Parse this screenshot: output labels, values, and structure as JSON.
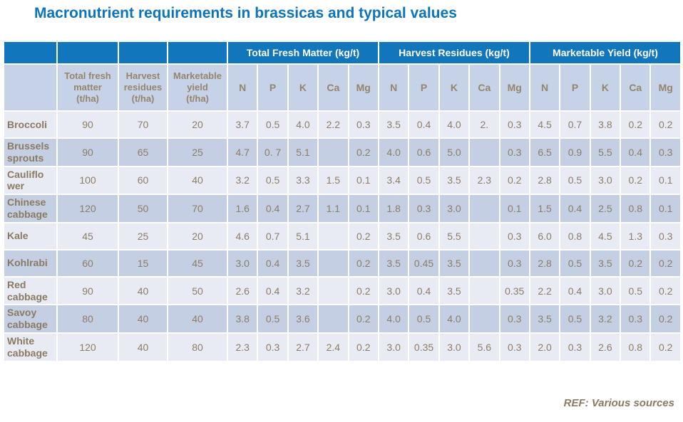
{
  "title": "Macronutrient requirements in brassicas and typical values",
  "footer": {
    "reference": "REF: Various sources"
  },
  "colors": {
    "title_blue": "#0d74bc",
    "header_blue": "#1276bc",
    "subheader_bg": "#c6d2e7",
    "row_light": "#e9ebf4",
    "row_dark": "#c4cfe3",
    "text_brown": "#8a7a62"
  },
  "table": {
    "group_headers": [
      "Total Fresh Matter (kg/t)",
      "Harvest Residues (kg/t)",
      "Marketable Yield (kg/t)"
    ],
    "stat_headers": [
      "Total fresh\nmatter\n(t/ha)",
      "Harvest\nresidues\n(t/ha)",
      "Marketable\nyield\n(t/ha)"
    ],
    "nutrient_headers": [
      "N",
      "P",
      "K",
      "Ca",
      "Mg"
    ],
    "rows": [
      {
        "crop": "Broccoli",
        "tha": [
          "90",
          "70",
          "20"
        ],
        "total_fresh_matter": [
          "3.7",
          "0.5",
          "4.0",
          "2.2",
          "0.3"
        ],
        "harvest_residues": [
          "3.5",
          "0.4",
          "4.0",
          "2.",
          "0.3"
        ],
        "marketable_yield": [
          "4.5",
          "0.7",
          "3.8",
          "0.2",
          "0.2"
        ]
      },
      {
        "crop": "Brussels\nsprouts",
        "tha": [
          "90",
          "65",
          "25"
        ],
        "total_fresh_matter": [
          "4.7",
          "0. 7",
          "5.1",
          "",
          "0.2"
        ],
        "harvest_residues": [
          "4.0",
          "0.6",
          "5.0",
          "",
          "0.3"
        ],
        "marketable_yield": [
          "6.5",
          "0.9",
          "5.5",
          "0.4",
          "0.3"
        ]
      },
      {
        "crop": "Cauliflo\nwer",
        "tha": [
          "100",
          "60",
          "40"
        ],
        "total_fresh_matter": [
          "3.2",
          "0.5",
          "3.3",
          "1.5",
          "0.1"
        ],
        "harvest_residues": [
          "3.4",
          "0.5",
          "3.5",
          "2.3",
          "0.2"
        ],
        "marketable_yield": [
          "2.8",
          "0.5",
          "3.0",
          "0.2",
          "0.1"
        ]
      },
      {
        "crop": "Chinese\ncabbage",
        "tha": [
          "120",
          "50",
          "70"
        ],
        "total_fresh_matter": [
          "1.6",
          "0.4",
          "2.7",
          "1.1",
          "0.1"
        ],
        "harvest_residues": [
          "1.8",
          "0.3",
          "3.0",
          "",
          "0.1"
        ],
        "marketable_yield": [
          "1.5",
          "0.4",
          "2.5",
          "0.8",
          "0.1"
        ]
      },
      {
        "crop": "Kale",
        "tha": [
          "45",
          "25",
          "20"
        ],
        "total_fresh_matter": [
          "4.6",
          "0.7",
          "5.1",
          "",
          "0.2"
        ],
        "harvest_residues": [
          "3.5",
          "0.6",
          "5.5",
          "",
          "0.3"
        ],
        "marketable_yield": [
          "6.0",
          "0.8",
          "4.5",
          "1.3",
          "0.3"
        ]
      },
      {
        "crop": "Kohlrabi",
        "tha": [
          "60",
          "15",
          "45"
        ],
        "total_fresh_matter": [
          "3.0",
          "0.4",
          "3.5",
          "",
          "0.2"
        ],
        "harvest_residues": [
          "3.5",
          "0.45",
          "3.5",
          "",
          "0.3"
        ],
        "marketable_yield": [
          "2.8",
          "0.5",
          "3.5",
          "0.2",
          "0.2"
        ]
      },
      {
        "crop": "Red\ncabbage",
        "tha": [
          "90",
          "40",
          "50"
        ],
        "total_fresh_matter": [
          "2.6",
          "0.4",
          "3.2",
          "",
          "0.2"
        ],
        "harvest_residues": [
          "3.0",
          "0.4",
          "3.5",
          "",
          "0.35"
        ],
        "marketable_yield": [
          "2.2",
          "0.4",
          "3.0",
          "0.5",
          "0.2"
        ]
      },
      {
        "crop": "Savoy\ncabbage",
        "tha": [
          "80",
          "40",
          "40"
        ],
        "total_fresh_matter": [
          "3.8",
          "0.5",
          "3.6",
          "",
          "0.2"
        ],
        "harvest_residues": [
          "4.0",
          "0.5",
          "4.0",
          "",
          "0.3"
        ],
        "marketable_yield": [
          "3.5",
          "0.5",
          "3.2",
          "0.3",
          "0.2"
        ]
      },
      {
        "crop": "White\ncabbage",
        "tha": [
          "120",
          "40",
          "80"
        ],
        "total_fresh_matter": [
          "2.3",
          "0.3",
          "2.7",
          "2.4",
          "0.2"
        ],
        "harvest_residues": [
          "3.0",
          "0.35",
          "3.0",
          "5.6",
          "0.3"
        ],
        "marketable_yield": [
          "2.0",
          "0.3",
          "2.6",
          "0.8",
          "0.2"
        ]
      }
    ]
  }
}
